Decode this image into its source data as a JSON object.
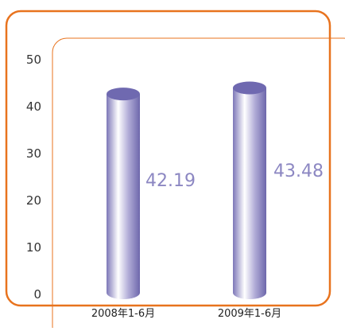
{
  "chart_data": {
    "type": "bar",
    "style": "3d-cylinder",
    "categories": [
      "2008年1-6月",
      "2009年1-6月"
    ],
    "values": [
      42.19,
      43.48
    ],
    "value_labels": [
      "42.19",
      "43.48"
    ],
    "yticks": [
      "0",
      "10",
      "20",
      "30",
      "40",
      "50"
    ],
    "ylim": [
      0,
      50
    ],
    "grid": false,
    "colors": {
      "frame": "#e8731e",
      "bar": "#8c87c2",
      "bar_top": "#6f69b0",
      "value_label": "#8c87c2"
    }
  }
}
